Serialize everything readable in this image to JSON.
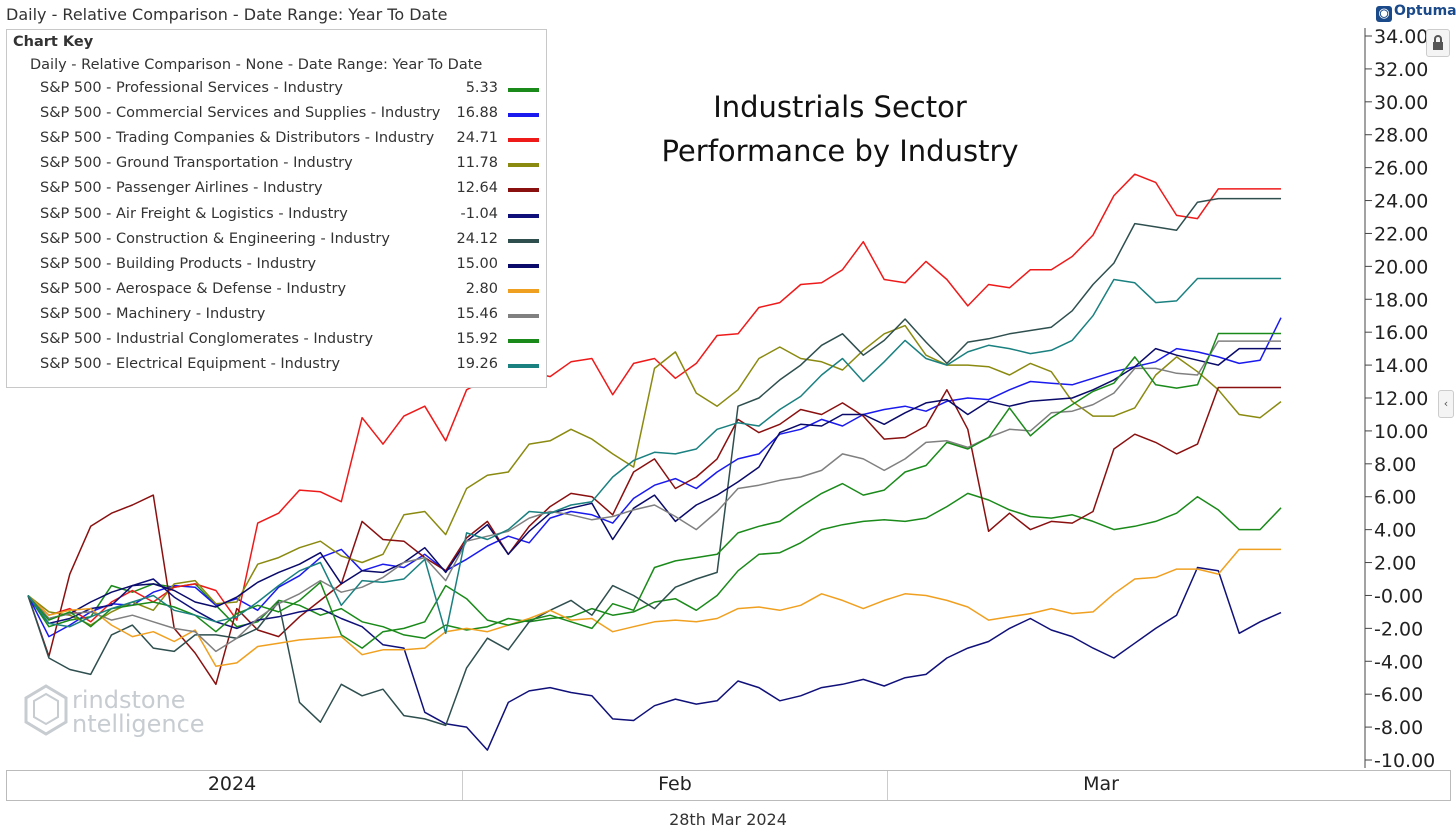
{
  "header": {
    "title": "Daily - Relative Comparison - Date Range: Year To Date",
    "brand": "Optuma"
  },
  "footer": {
    "date": "28th Mar 2024"
  },
  "watermark": {
    "line1": "rindstone",
    "line2": "ntelligence"
  },
  "colors": {
    "background": "#ffffff",
    "grid": "#e6e6e6",
    "axis": "#444444"
  },
  "chart_data": {
    "type": "line",
    "title": "Industrials Sector Performance by Industry",
    "title_lines": [
      "Industrials Sector",
      "Performance by Industry"
    ],
    "key_title": "Chart Key",
    "key_subtitle": "Daily - Relative Comparison - None - Date Range: Year To Date",
    "x_labels": [
      "2024",
      "Feb",
      "Mar"
    ],
    "y_axis_side": "right",
    "ylim": [
      -10,
      34
    ],
    "y_ticks": [
      "-10.00",
      "-8.00",
      "-6.00",
      "-4.00",
      "-2.00",
      "-0.00",
      "2.00",
      "4.00",
      "6.00",
      "8.00",
      "10.00",
      "12.00",
      "14.00",
      "16.00",
      "18.00",
      "20.00",
      "22.00",
      "24.00",
      "26.00",
      "28.00",
      "30.00",
      "32.00",
      "34.00"
    ],
    "grid": false,
    "legend_position": "top-left",
    "n_points": 61,
    "series": [
      {
        "name": "S&P 500 - Professional Services - Industry",
        "last": "5.33",
        "color": "#1a8a1a",
        "values": [
          0,
          -1.9,
          -1.5,
          -1.3,
          0.6,
          0.2,
          0.7,
          0.5,
          0.7,
          -0.6,
          -1.9,
          -1.6,
          -0.3,
          -0.6,
          -1.2,
          -0.8,
          -1.6,
          -1.9,
          -2.4,
          -2.6,
          -1.8,
          -2.1,
          -1.9,
          -1.4,
          -1.6,
          -1.4,
          -1.3,
          -0.8,
          -1.2,
          -1.0,
          -0.4,
          -0.2,
          -0.9,
          0,
          1.5,
          2.5,
          2.6,
          3.2,
          4.0,
          4.3,
          4.5,
          4.6,
          4.5,
          4.7,
          5.4,
          6.2,
          5.8,
          5.2,
          4.8,
          4.7,
          4.9,
          4.5,
          4.0,
          4.2,
          4.5,
          5.0,
          6.0,
          5.2,
          4.0,
          4.0,
          5.33
        ]
      },
      {
        "name": "S&P 500 - Commercial Services and Supplies - Industry",
        "last": "16.88",
        "color": "#1a1aee",
        "values": [
          0,
          -2.5,
          -1.8,
          -1.0,
          -0.5,
          -0.6,
          0.2,
          0.6,
          0.5,
          -0.6,
          -0.2,
          -0.9,
          0.5,
          1.2,
          2.3,
          2.8,
          1.5,
          1.9,
          1.7,
          2.5,
          1.5,
          2.2,
          3.0,
          3.6,
          3.2,
          4.7,
          5.1,
          4.9,
          4.4,
          5.9,
          6.7,
          7.1,
          6.5,
          7.5,
          8.3,
          8.6,
          9.8,
          10.1,
          10.7,
          10.3,
          11.0,
          11.3,
          11.5,
          11.2,
          11.8,
          12.0,
          11.9,
          12.5,
          13.0,
          12.9,
          12.8,
          13.2,
          13.6,
          13.9,
          14.2,
          15.0,
          14.8,
          14.5,
          14.1,
          14.3,
          16.88
        ]
      },
      {
        "name": "S&P 500 - Trading Companies & Distributors - Industry",
        "last": "24.71",
        "color": "#ee1a1a",
        "values": [
          0,
          -1.2,
          -0.8,
          -1.6,
          -0.4,
          0.3,
          -0.4,
          0.5,
          0.7,
          0.3,
          -1.5,
          4.4,
          5.0,
          6.4,
          6.3,
          5.7,
          10.8,
          9.2,
          10.9,
          11.5,
          9.4,
          12.5,
          13.2,
          13.4,
          13.6,
          13.3,
          14.2,
          14.4,
          12.2,
          14.1,
          14.4,
          13.2,
          14.1,
          15.8,
          15.9,
          17.5,
          17.8,
          18.9,
          19.0,
          19.8,
          21.5,
          19.2,
          19.0,
          20.3,
          19.2,
          17.6,
          18.9,
          18.7,
          19.8,
          19.8,
          20.6,
          21.9,
          24.3,
          25.6,
          25.1,
          23.1,
          22.9,
          24.71,
          24.71,
          24.71,
          24.71
        ]
      },
      {
        "name": "S&P 500 - Ground Transportation - Industry",
        "last": "11.78",
        "color": "#8a8a10",
        "values": [
          0,
          -1.0,
          -1.2,
          -1.8,
          -1.0,
          -0.4,
          -0.9,
          0.7,
          0.9,
          -0.5,
          -0.4,
          1.9,
          2.3,
          2.9,
          3.3,
          2.4,
          2.0,
          2.5,
          4.9,
          5.1,
          3.7,
          6.5,
          7.3,
          7.5,
          9.2,
          9.4,
          10.1,
          9.5,
          8.6,
          7.8,
          13.8,
          14.8,
          12.3,
          11.5,
          12.5,
          14.4,
          15.1,
          14.4,
          14.2,
          13.7,
          14.9,
          15.9,
          16.4,
          14.6,
          14.0,
          14.0,
          13.9,
          13.4,
          14.1,
          13.6,
          11.8,
          10.9,
          10.9,
          11.4,
          13.4,
          14.5,
          13.6,
          12.5,
          11.0,
          10.8,
          11.78
        ]
      },
      {
        "name": "S&P 500 - Passenger Airlines - Industry",
        "last": "12.64",
        "color": "#8a1010",
        "values": [
          0,
          -3.7,
          1.3,
          4.2,
          5.0,
          5.5,
          6.1,
          -2.0,
          -3.5,
          -5.4,
          -0.8,
          -2.1,
          -2.5,
          -1.3,
          -0.3,
          0.7,
          4.5,
          3.4,
          3.3,
          2.3,
          1.5,
          3.5,
          4.5,
          2.5,
          4.2,
          5.4,
          6.2,
          6.0,
          4.9,
          7.5,
          8.3,
          6.5,
          7.2,
          8.3,
          10.7,
          9.9,
          10.4,
          11.3,
          11.0,
          11.7,
          10.9,
          9.5,
          9.6,
          10.3,
          12.5,
          10.1,
          3.9,
          5.0,
          4.0,
          4.5,
          4.4,
          5.1,
          8.9,
          9.8,
          9.3,
          8.6,
          9.2,
          12.64,
          12.64,
          12.64,
          12.64
        ]
      },
      {
        "name": "S&P 500 - Air Freight & Logistics - Industry",
        "last": "-1.04",
        "color": "#10107a",
        "values": [
          0,
          -1.7,
          -1.4,
          -0.8,
          -0.6,
          0.6,
          1.0,
          -0.1,
          -0.9,
          -1.6,
          -2.0,
          -1.5,
          -1.3,
          -1.0,
          -0.8,
          -1.4,
          -1.9,
          -3.0,
          -3.2,
          -7.1,
          -7.8,
          -8.0,
          -9.4,
          -6.5,
          -5.8,
          -5.6,
          -5.9,
          -6.1,
          -7.5,
          -7.6,
          -6.7,
          -6.3,
          -6.6,
          -6.4,
          -5.2,
          -5.6,
          -6.4,
          -6.1,
          -5.6,
          -5.4,
          -5.1,
          -5.5,
          -5.0,
          -4.8,
          -3.8,
          -3.2,
          -2.8,
          -2.0,
          -1.4,
          -2.1,
          -2.5,
          -3.2,
          -3.8,
          -2.9,
          -2.0,
          -1.2,
          1.7,
          1.5,
          -2.3,
          -1.6,
          -1.04
        ]
      },
      {
        "name": "S&P 500 - Construction & Engineering - Industry",
        "last": "24.12",
        "color": "#2f4f4f",
        "values": [
          0,
          -3.8,
          -4.5,
          -4.8,
          -2.4,
          -1.8,
          -3.2,
          -3.4,
          -2.4,
          -2.4,
          -2.6,
          -2.0,
          -0.4,
          -6.5,
          -7.7,
          -5.4,
          -6.1,
          -5.7,
          -7.3,
          -7.5,
          -7.9,
          -4.4,
          -2.6,
          -3.3,
          -1.6,
          -0.9,
          -0.3,
          -1.2,
          0.6,
          0.0,
          -0.8,
          0.5,
          1.0,
          1.4,
          11.5,
          12.0,
          13.1,
          14.0,
          15.2,
          15.9,
          14.6,
          15.5,
          16.8,
          15.4,
          14.1,
          15.4,
          15.6,
          15.9,
          16.1,
          16.3,
          17.3,
          18.9,
          20.2,
          22.6,
          22.4,
          22.2,
          23.9,
          24.12,
          24.12,
          24.12,
          24.12
        ]
      },
      {
        "name": "S&P 500 - Building Products - Industry",
        "last": "15.00",
        "color": "#0a0a6a",
        "values": [
          0,
          -1.4,
          -1.1,
          -0.4,
          0.2,
          0.6,
          0.7,
          0.3,
          -0.4,
          -0.7,
          -0.1,
          0.8,
          1.4,
          1.9,
          2.6,
          0.7,
          1.5,
          1.4,
          2.0,
          2.9,
          1.4,
          3.3,
          4.3,
          2.5,
          3.9,
          5.0,
          5.3,
          5.6,
          3.4,
          5.3,
          6.1,
          4.5,
          5.5,
          6.1,
          6.9,
          7.8,
          9.9,
          10.4,
          10.3,
          11.0,
          11.0,
          10.4,
          11.1,
          11.7,
          11.9,
          11.0,
          11.8,
          11.5,
          11.8,
          11.9,
          12.0,
          12.5,
          13.1,
          13.9,
          15.0,
          14.6,
          14.3,
          14.0,
          15.0,
          15.0,
          15.0
        ]
      },
      {
        "name": "S&P 500 - Aerospace & Defense - Industry",
        "last": "2.80",
        "color": "#f0a020",
        "values": [
          0,
          -1.2,
          -0.9,
          -0.8,
          -1.8,
          -2.5,
          -2.2,
          -2.8,
          -2.1,
          -4.3,
          -4.1,
          -3.1,
          -2.9,
          -2.7,
          -2.6,
          -2.5,
          -3.6,
          -3.3,
          -3.3,
          -3.2,
          -2.2,
          -2.0,
          -2.2,
          -1.8,
          -1.4,
          -0.9,
          -1.5,
          -1.4,
          -2.2,
          -1.9,
          -1.6,
          -1.5,
          -1.6,
          -1.4,
          -0.8,
          -0.7,
          -0.9,
          -0.6,
          0.1,
          -0.3,
          -0.8,
          -0.3,
          0.1,
          0.0,
          -0.3,
          -0.7,
          -1.5,
          -1.3,
          -1.1,
          -0.8,
          -1.1,
          -1.0,
          0.1,
          1.0,
          1.1,
          1.6,
          1.6,
          1.3,
          2.8,
          2.8,
          2.8
        ]
      },
      {
        "name": "S&P 500 - Machinery - Industry",
        "last": "15.46",
        "color": "#808080",
        "values": [
          0,
          -1.4,
          -1.1,
          -1.0,
          -1.5,
          -1.2,
          -1.6,
          -2.0,
          -2.2,
          -3.4,
          -2.6,
          -1.4,
          -0.5,
          0.1,
          0.9,
          0.2,
          0.5,
          1.1,
          2.0,
          2.3,
          0.9,
          3.3,
          3.6,
          3.9,
          4.7,
          5.1,
          4.9,
          4.6,
          4.8,
          5.2,
          5.5,
          4.8,
          4.0,
          5.1,
          6.5,
          6.7,
          7.0,
          7.2,
          7.6,
          8.6,
          8.3,
          7.6,
          8.3,
          9.3,
          9.4,
          9.0,
          9.6,
          10.1,
          10.0,
          11.1,
          11.2,
          11.6,
          12.3,
          13.8,
          13.8,
          13.5,
          13.4,
          15.46,
          15.46,
          15.46,
          15.46
        ]
      },
      {
        "name": "S&P 500 - Industrial Conglomerates - Industry",
        "last": "15.92",
        "color": "#1a8a1a",
        "values": [
          0,
          -1.5,
          -1.0,
          -1.9,
          -0.8,
          -0.6,
          -0.4,
          -0.7,
          -1.2,
          -2.2,
          -1.1,
          -0.6,
          -1.0,
          -0.3,
          0.8,
          -2.4,
          -3.2,
          -2.2,
          -2.0,
          -1.6,
          0.6,
          -0.2,
          -1.5,
          -1.8,
          -1.5,
          -1.2,
          -1.6,
          -2.0,
          -0.5,
          -0.9,
          1.7,
          2.1,
          2.3,
          2.5,
          3.8,
          4.2,
          4.5,
          5.4,
          6.2,
          6.8,
          6.1,
          6.4,
          7.5,
          7.9,
          9.3,
          8.9,
          9.6,
          11.4,
          9.7,
          10.8,
          11.6,
          12.4,
          12.9,
          14.5,
          12.8,
          12.6,
          12.8,
          15.92,
          15.92,
          15.92,
          15.92
        ]
      },
      {
        "name": "S&P 500 - Electrical Equipment - Industry",
        "last": "19.26",
        "color": "#1a8080",
        "values": [
          0,
          -1.7,
          -1.9,
          -1.3,
          -0.8,
          -0.4,
          0.0,
          -0.9,
          -1.2,
          -1.6,
          -1.3,
          -0.4,
          0.6,
          1.5,
          2.0,
          -0.6,
          0.9,
          0.8,
          1.0,
          2.2,
          -2.3,
          3.8,
          3.4,
          4.0,
          5.1,
          5.0,
          5.5,
          5.7,
          7.2,
          8.2,
          8.7,
          8.6,
          8.9,
          10.1,
          10.5,
          10.3,
          11.3,
          12.1,
          13.4,
          14.4,
          13.0,
          14.2,
          15.5,
          14.4,
          14.0,
          14.8,
          15.2,
          15.0,
          14.7,
          14.9,
          15.5,
          17.0,
          19.2,
          19.0,
          17.8,
          17.9,
          19.26,
          19.26,
          19.26,
          19.26,
          19.26
        ]
      }
    ]
  }
}
